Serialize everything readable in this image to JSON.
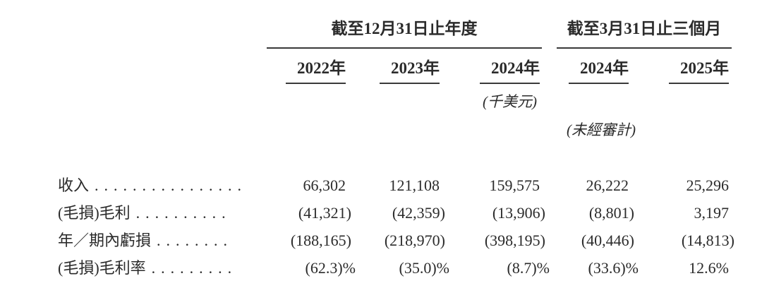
{
  "table": {
    "column_groups": [
      {
        "label": "截至12月31日止年度",
        "span": 3
      },
      {
        "label": "截至3月31日止三個月",
        "span": 2
      }
    ],
    "year_headers": [
      "2022年",
      "2023年",
      "2024年",
      "2024年",
      "2025年"
    ],
    "unit_note": "(千美元)",
    "audit_note": "(未經審計)",
    "rows": [
      {
        "label": "收入",
        "leader": "................",
        "values": [
          "66,302",
          "121,108",
          "159,575",
          "26,222",
          "25,296"
        ]
      },
      {
        "label": "(毛損)毛利",
        "leader": "..........",
        "values": [
          "(41,321)",
          "(42,359)",
          "(13,906)",
          "(8,801)",
          "3,197"
        ]
      },
      {
        "label": "年／期內虧損",
        "leader": "........",
        "values": [
          "(188,165)",
          "(218,970)",
          "(398,195)",
          "(40,446)",
          "(14,813)"
        ]
      },
      {
        "label": "(毛損)毛利率",
        "leader": ".........",
        "values": [
          "(62.3)%",
          "(35.0)%",
          "(8.7)%",
          "(33.6)%",
          "12.6%"
        ]
      }
    ],
    "colors": {
      "background": "#ffffff",
      "text": "#2b2b2b",
      "rule": "#3a3a3a"
    }
  }
}
